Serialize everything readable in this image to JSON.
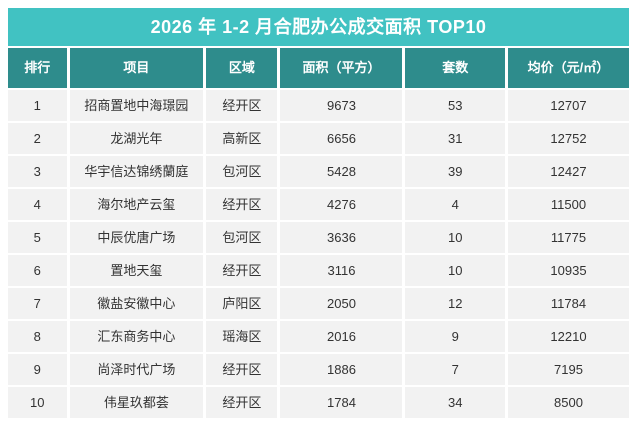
{
  "title": "2026 年 1-2 月合肥办公成交面积 TOP10",
  "colors": {
    "title_bg": "#41C2C2",
    "header_bg": "#2E8C8C",
    "row_bg": "#F2F2F2",
    "header_text": "#FFFFFF",
    "cell_text": "#333333"
  },
  "chart_data": {
    "type": "table",
    "title": "2026 年 1-2 月合肥办公成交面积 TOP10",
    "columns": [
      "排行",
      "项目",
      "区域",
      "面积（平方）",
      "套数",
      "均价（元/㎡）"
    ],
    "rows": [
      [
        "1",
        "招商置地中海璟园",
        "经开区",
        "9673",
        "53",
        "12707"
      ],
      [
        "2",
        "龙湖光年",
        "高新区",
        "6656",
        "31",
        "12752"
      ],
      [
        "3",
        "华宇信达锦绣蘭庭",
        "包河区",
        "5428",
        "39",
        "12427"
      ],
      [
        "4",
        "海尔地产云玺",
        "经开区",
        "4276",
        "4",
        "11500"
      ],
      [
        "5",
        "中辰优唐广场",
        "包河区",
        "3636",
        "10",
        "11775"
      ],
      [
        "6",
        "置地天玺",
        "经开区",
        "3116",
        "10",
        "10935"
      ],
      [
        "7",
        "徽盐安徽中心",
        "庐阳区",
        "2050",
        "12",
        "11784"
      ],
      [
        "8",
        "汇东商务中心",
        "瑶海区",
        "2016",
        "9",
        "12210"
      ],
      [
        "9",
        "尚泽时代广场",
        "经开区",
        "1886",
        "7",
        "7195"
      ],
      [
        "10",
        "伟星玖都荟",
        "经开区",
        "1784",
        "34",
        "8500"
      ]
    ]
  }
}
